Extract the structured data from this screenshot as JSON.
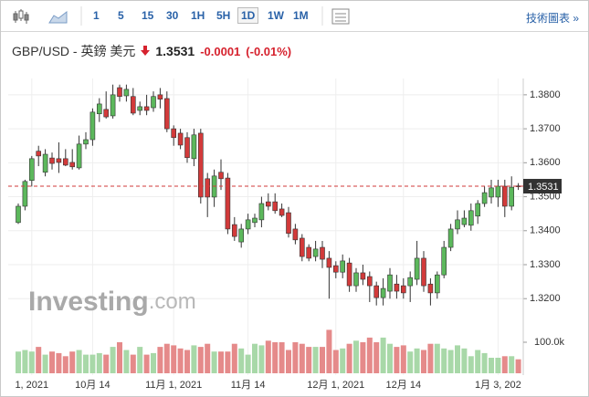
{
  "toolbar": {
    "intervals": [
      "1",
      "5",
      "15",
      "30",
      "1H",
      "5H",
      "1D",
      "1W",
      "1M"
    ],
    "selected": "1D",
    "link": "技術圖表 »"
  },
  "header": {
    "title": "GBP/USD - 英鎊 美元",
    "change": "-0.0001",
    "change_pct": "(-0.01%)"
  },
  "chart_data": {
    "type": "candlestick",
    "watermark": [
      "Investing",
      ".com"
    ],
    "categories": [
      null,
      null,
      "1, 2021",
      null,
      null,
      null,
      null,
      null,
      null,
      null,
      null,
      "10月 14",
      null,
      null,
      null,
      null,
      null,
      null,
      null,
      null,
      null,
      null,
      null,
      "11月 1, 2021",
      null,
      null,
      null,
      null,
      null,
      null,
      null,
      null,
      null,
      null,
      "11月 14",
      null,
      null,
      null,
      null,
      null,
      null,
      null,
      null,
      null,
      null,
      null,
      null,
      "12月 1, 2021",
      null,
      null,
      null,
      null,
      null,
      null,
      null,
      null,
      null,
      "12月 14",
      null,
      null,
      null,
      null,
      null,
      null,
      null,
      null,
      null,
      null,
      null,
      null,
      null,
      "1月 3, 202",
      null,
      null,
      null
    ],
    "open": [
      1.3424,
      1.3472,
      1.3548,
      1.3634,
      1.3572,
      1.3614,
      1.3612,
      1.3612,
      1.3601,
      1.3585,
      1.3655,
      1.3668,
      1.3744,
      1.3757,
      1.3738,
      1.3821,
      1.3797,
      1.3795,
      1.3754,
      1.3765,
      1.3762,
      1.38,
      1.3789,
      1.37,
      1.3687,
      1.3674,
      1.3612,
      1.3687,
      1.3553,
      1.3499,
      1.3572,
      1.3555,
      1.3418,
      1.3367,
      1.3405,
      1.3424,
      1.3432,
      1.3485,
      1.3485,
      1.3464,
      1.3453,
      1.3405,
      1.3378,
      1.3351,
      1.3324,
      1.3351,
      1.3319,
      1.3297,
      1.3278,
      1.3305,
      1.3238,
      1.3276,
      1.3265,
      1.3238,
      1.3203,
      1.3222,
      1.3243,
      1.3238,
      1.3238,
      1.3257,
      1.3319,
      1.3243,
      1.3217,
      1.327,
      1.3351,
      1.3405,
      1.3418,
      1.3416,
      1.3443,
      1.348,
      1.3499,
      1.3499,
      1.3531,
      1.3472,
      1.3532
    ],
    "high": [
      1.348,
      1.355,
      1.362,
      1.365,
      1.364,
      1.363,
      1.366,
      1.364,
      1.364,
      1.368,
      1.369,
      1.376,
      1.379,
      1.381,
      1.383,
      1.383,
      1.383,
      1.382,
      1.378,
      1.38,
      1.381,
      1.382,
      1.381,
      1.371,
      1.37,
      1.369,
      1.37,
      1.37,
      1.357,
      1.358,
      1.361,
      1.357,
      1.344,
      1.342,
      1.345,
      1.345,
      1.35,
      1.351,
      1.351,
      1.348,
      1.347,
      1.342,
      1.339,
      1.336,
      1.337,
      1.337,
      1.334,
      1.331,
      1.333,
      1.332,
      1.329,
      1.33,
      1.328,
      1.325,
      1.326,
      1.329,
      1.327,
      1.326,
      1.328,
      1.337,
      1.334,
      1.326,
      1.328,
      1.337,
      1.342,
      1.346,
      1.346,
      1.348,
      1.349,
      1.353,
      1.355,
      1.355,
      1.355,
      1.356,
      1.354
    ],
    "low": [
      1.342,
      1.346,
      1.353,
      1.359,
      1.356,
      1.358,
      1.357,
      1.359,
      1.358,
      1.358,
      1.364,
      1.365,
      1.372,
      1.373,
      1.373,
      1.378,
      1.378,
      1.374,
      1.374,
      1.374,
      1.375,
      1.376,
      1.369,
      1.365,
      1.364,
      1.36,
      1.359,
      1.348,
      1.344,
      1.347,
      1.352,
      1.339,
      1.337,
      1.335,
      1.339,
      1.341,
      1.341,
      1.346,
      1.345,
      1.344,
      1.338,
      1.336,
      1.331,
      1.331,
      1.331,
      1.329,
      1.32,
      1.326,
      1.326,
      1.322,
      1.322,
      1.324,
      1.319,
      1.318,
      1.318,
      1.32,
      1.32,
      1.32,
      1.319,
      1.324,
      1.322,
      1.318,
      1.32,
      1.326,
      1.334,
      1.339,
      1.341,
      1.34,
      1.342,
      1.347,
      1.348,
      1.347,
      1.344,
      1.346,
      1.352
    ],
    "close": [
      1.3472,
      1.3545,
      1.3612,
      1.362,
      1.3625,
      1.3598,
      1.3601,
      1.3593,
      1.3588,
      1.3655,
      1.3668,
      1.3749,
      1.3773,
      1.3735,
      1.38,
      1.3795,
      1.3816,
      1.3746,
      1.3765,
      1.3754,
      1.3795,
      1.3787,
      1.37,
      1.3674,
      1.3652,
      1.3615,
      1.3682,
      1.3499,
      1.3499,
      1.3561,
      1.3553,
      1.3405,
      1.3383,
      1.3405,
      1.3432,
      1.3437,
      1.348,
      1.3472,
      1.3459,
      1.3445,
      1.3392,
      1.3373,
      1.3324,
      1.3319,
      1.3346,
      1.3316,
      1.3292,
      1.3278,
      1.3311,
      1.3238,
      1.3276,
      1.3257,
      1.3238,
      1.3203,
      1.323,
      1.327,
      1.3222,
      1.3217,
      1.3262,
      1.3319,
      1.3238,
      1.3217,
      1.327,
      1.3351,
      1.3405,
      1.3432,
      1.3437,
      1.3459,
      1.348,
      1.3512,
      1.3526,
      1.3531,
      1.3472,
      1.3528,
      1.3531
    ],
    "volume": [
      70000,
      75000,
      70000,
      85000,
      60000,
      70000,
      65000,
      55000,
      70000,
      75000,
      60000,
      60000,
      65000,
      60000,
      85000,
      100000,
      75000,
      60000,
      85000,
      60000,
      65000,
      85000,
      95000,
      90000,
      80000,
      75000,
      90000,
      85000,
      95000,
      70000,
      70000,
      70000,
      95000,
      80000,
      60000,
      95000,
      90000,
      105000,
      100000,
      100000,
      75000,
      100000,
      95000,
      85000,
      85000,
      85000,
      140000,
      75000,
      80000,
      95000,
      105000,
      100000,
      115000,
      100000,
      115000,
      95000,
      85000,
      90000,
      70000,
      80000,
      75000,
      95000,
      95000,
      80000,
      75000,
      90000,
      80000,
      55000,
      75000,
      65000,
      50000,
      50000,
      55000,
      55000,
      45000
    ],
    "up_color": "#5cb85c",
    "down_color": "#d23a3a",
    "up_volume_color": "#a8d8a8",
    "down_volume_color": "#e58a8a",
    "last_price": 1.3531,
    "last_price_color": "#d23a3a",
    "ylim": [
      1.2975,
      1.3848
    ],
    "yticks": [
      {
        "value": 1.32,
        "label": "1.3200"
      },
      {
        "value": 1.33,
        "label": "1.3300"
      },
      {
        "value": 1.34,
        "label": "1.3400"
      },
      {
        "value": 1.35,
        "label": "1.3500"
      },
      {
        "value": 1.36,
        "label": "1.3600"
      },
      {
        "value": 1.37,
        "label": "1.3700"
      },
      {
        "value": 1.38,
        "label": "1.3800"
      }
    ],
    "y2lim": [
      0,
      150000
    ],
    "y2ticks": [
      {
        "value": 100000,
        "label": "100.0k"
      }
    ],
    "grid": true
  }
}
